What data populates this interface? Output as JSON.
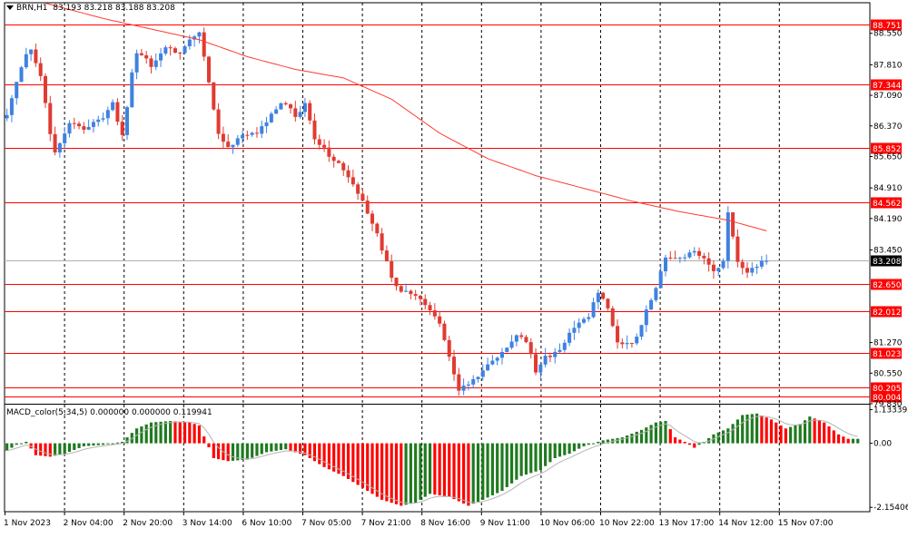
{
  "header": {
    "symbol": "BRN,H1",
    "quote": "83.193 83.218 83.188 83.208"
  },
  "macd_header": {
    "label": "MACD_color(5,34,5) 0.000000 0.000000 0.119941"
  },
  "colors": {
    "bull": "#3e82e0",
    "bear": "#e03b32",
    "level_line": "#ff0000",
    "ma_line": "#ff3b30",
    "grid": "#000000",
    "macd_up": "#1f7a1f",
    "macd_down": "#ff0000",
    "signal": "#b4b4b4",
    "current_price_bg": "#000000"
  },
  "chart_data": [
    {
      "type": "candlestick",
      "name": "price",
      "ylim": [
        79.83,
        89.27
      ],
      "y_ticks": [
        "88.550",
        "87.810",
        "87.090",
        "86.370",
        "85.650",
        "84.910",
        "84.190",
        "83.450",
        "81.270",
        "80.550",
        "79.830"
      ],
      "levels": [
        88.751,
        87.344,
        85.852,
        84.562,
        82.65,
        82.012,
        81.023,
        80.205,
        80.004
      ],
      "level_labels": [
        "88.751",
        "87.344",
        "85.852",
        "84.562",
        "82.650",
        "82.012",
        "81.023",
        "80.205",
        "80.004"
      ],
      "current_price": 83.208,
      "current_price_label": "83.208",
      "x_labels": [
        "1 Nov 2023",
        "2 Nov 04:00",
        "2 Nov 20:00",
        "3 Nov 14:00",
        "6 Nov 10:00",
        "7 Nov 05:00",
        "7 Nov 21:00",
        "8 Nov 16:00",
        "9 Nov 11:00",
        "10 Nov 06:00",
        "10 Nov 22:00",
        "13 Nov 17:00",
        "14 Nov 12:00",
        "15 Nov 07:00"
      ],
      "close_path": [
        [
          0,
          86.6
        ],
        [
          3,
          87.8
        ],
        [
          5,
          88.2
        ],
        [
          7,
          87.5
        ],
        [
          9,
          86.2
        ],
        [
          10,
          85.7
        ],
        [
          13,
          86.4
        ],
        [
          16,
          86.3
        ],
        [
          20,
          86.6
        ],
        [
          22,
          86.9
        ],
        [
          24,
          86.1
        ],
        [
          26,
          87.6
        ],
        [
          27,
          88.1
        ],
        [
          30,
          87.8
        ],
        [
          33,
          88.2
        ],
        [
          36,
          88.1
        ],
        [
          38,
          88.4
        ],
        [
          40,
          88.6
        ],
        [
          42,
          87.4
        ],
        [
          44,
          86.2
        ],
        [
          46,
          85.9
        ],
        [
          49,
          86.1
        ],
        [
          52,
          86.2
        ],
        [
          56,
          86.8
        ],
        [
          58,
          86.9
        ],
        [
          60,
          86.6
        ],
        [
          62,
          86.9
        ],
        [
          64,
          86.1
        ],
        [
          67,
          85.7
        ],
        [
          69,
          85.5
        ],
        [
          72,
          85.0
        ],
        [
          74,
          84.6
        ],
        [
          77,
          83.8
        ],
        [
          80,
          82.8
        ],
        [
          82,
          82.5
        ],
        [
          84,
          82.4
        ],
        [
          86,
          82.3
        ],
        [
          88,
          82.0
        ],
        [
          90,
          81.7
        ],
        [
          92,
          80.9
        ],
        [
          94,
          80.1
        ],
        [
          96,
          80.3
        ],
        [
          98,
          80.5
        ],
        [
          100,
          80.8
        ],
        [
          102,
          80.9
        ],
        [
          104,
          81.1
        ],
        [
          106,
          81.5
        ],
        [
          108,
          81.3
        ],
        [
          110,
          80.6
        ],
        [
          112,
          80.9
        ],
        [
          114,
          81.0
        ],
        [
          116,
          81.3
        ],
        [
          118,
          81.6
        ],
        [
          121,
          81.9
        ],
        [
          123,
          82.5
        ],
        [
          125,
          82.1
        ],
        [
          127,
          81.3
        ],
        [
          129,
          81.2
        ],
        [
          131,
          81.4
        ],
        [
          133,
          82.0
        ],
        [
          135,
          82.6
        ],
        [
          137,
          83.3
        ],
        [
          140,
          83.3
        ],
        [
          143,
          83.4
        ],
        [
          145,
          83.3
        ],
        [
          147,
          82.9
        ],
        [
          149,
          83.2
        ],
        [
          150,
          84.3
        ],
        [
          152,
          83.2
        ],
        [
          154,
          82.9
        ],
        [
          156,
          83.1
        ],
        [
          158,
          83.2
        ]
      ],
      "ma_path": [
        [
          0,
          89.5
        ],
        [
          20,
          88.9
        ],
        [
          40,
          88.4
        ],
        [
          50,
          88.0
        ],
        [
          60,
          87.7
        ],
        [
          70,
          87.5
        ],
        [
          80,
          87.0
        ],
        [
          90,
          86.2
        ],
        [
          100,
          85.6
        ],
        [
          110,
          85.2
        ],
        [
          120,
          84.9
        ],
        [
          130,
          84.6
        ],
        [
          140,
          84.35
        ],
        [
          150,
          84.15
        ],
        [
          158,
          83.9
        ]
      ]
    },
    {
      "type": "histogram",
      "name": "MACD_color(5,34,5)",
      "ylim": [
        -2.3,
        1.3
      ],
      "y_ticks": [
        "1.13339",
        "0.00",
        "-2.15406"
      ],
      "hist_path": [
        [
          0,
          -0.25
        ],
        [
          2,
          -0.05
        ],
        [
          4,
          0.05
        ],
        [
          6,
          -0.4
        ],
        [
          9,
          -0.45
        ],
        [
          12,
          -0.35
        ],
        [
          16,
          -0.1
        ],
        [
          20,
          -0.05
        ],
        [
          24,
          0.05
        ],
        [
          27,
          0.5
        ],
        [
          30,
          0.7
        ],
        [
          34,
          0.75
        ],
        [
          38,
          0.7
        ],
        [
          40,
          0.6
        ],
        [
          43,
          -0.5
        ],
        [
          46,
          -0.6
        ],
        [
          50,
          -0.55
        ],
        [
          54,
          -0.3
        ],
        [
          58,
          -0.2
        ],
        [
          62,
          -0.4
        ],
        [
          66,
          -0.8
        ],
        [
          70,
          -1.1
        ],
        [
          74,
          -1.5
        ],
        [
          78,
          -1.9
        ],
        [
          82,
          -2.1
        ],
        [
          85,
          -2.0
        ],
        [
          88,
          -1.7
        ],
        [
          92,
          -1.8
        ],
        [
          96,
          -2.1
        ],
        [
          99,
          -1.9
        ],
        [
          103,
          -1.6
        ],
        [
          107,
          -1.1
        ],
        [
          111,
          -0.9
        ],
        [
          114,
          -0.5
        ],
        [
          117,
          -0.35
        ],
        [
          120,
          -0.1
        ],
        [
          124,
          0.1
        ],
        [
          128,
          0.2
        ],
        [
          132,
          0.45
        ],
        [
          135,
          0.7
        ],
        [
          137,
          0.75
        ],
        [
          139,
          0.2
        ],
        [
          141,
          0.05
        ],
        [
          143,
          -0.15
        ],
        [
          145,
          0.05
        ],
        [
          147,
          0.3
        ],
        [
          150,
          0.5
        ],
        [
          153,
          0.95
        ],
        [
          156,
          1.0
        ],
        [
          159,
          0.8
        ],
        [
          162,
          0.5
        ],
        [
          165,
          0.65
        ],
        [
          167,
          0.9
        ],
        [
          170,
          0.7
        ],
        [
          173,
          0.3
        ],
        [
          175,
          0.15
        ],
        [
          177,
          0.15
        ]
      ]
    }
  ]
}
